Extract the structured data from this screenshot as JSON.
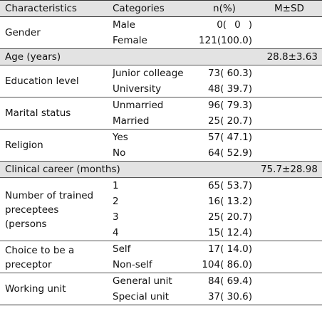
{
  "headers": [
    "Characteristics",
    "Categories",
    "n(%)",
    "M±SD"
  ],
  "rows": [
    {
      "label": "Gender",
      "cats": [
        {
          "cat": "Male",
          "n": "0(  0  )"
        },
        {
          "cat": "Female",
          "n": "121(100.0)"
        }
      ]
    },
    {
      "label": "Age (years)",
      "msd": "28.8±3.63"
    },
    {
      "label": "Education level",
      "cats": [
        {
          "cat": "Junior colleage",
          "n": "73( 60.3)"
        },
        {
          "cat": "University",
          "n": "48( 39.7)"
        }
      ]
    },
    {
      "label": "Marital status",
      "cats": [
        {
          "cat": "Unmarried",
          "n": "96( 79.3)"
        },
        {
          "cat": "Married",
          "n": "25( 20.7)"
        }
      ]
    },
    {
      "label": "Religion",
      "cats": [
        {
          "cat": "Yes",
          "n": "57( 47.1)"
        },
        {
          "cat": "No",
          "n": "64( 52.9)"
        }
      ]
    },
    {
      "label": "Clinical career (months)",
      "msd": "75.7±28.98"
    },
    {
      "label": "Number of trained preceptees (persons",
      "cats": [
        {
          "cat": "1",
          "n": "65( 53.7)"
        },
        {
          "cat": "2",
          "n": "16( 13.2)"
        },
        {
          "cat": "3",
          "n": "25( 20.7)"
        },
        {
          "cat": "4",
          "n": "15( 12.4)"
        }
      ]
    },
    {
      "label": "Choice to be a preceptor",
      "cats": [
        {
          "cat": "Self",
          "n": "17( 14.0)"
        },
        {
          "cat": "Non-self",
          "n": "104( 86.0)"
        }
      ]
    },
    {
      "label": "Working unit",
      "cats": [
        {
          "cat": "General unit",
          "n": "84( 69.4)"
        },
        {
          "cat": "Special unit",
          "n": "37( 30.6)"
        }
      ]
    }
  ]
}
